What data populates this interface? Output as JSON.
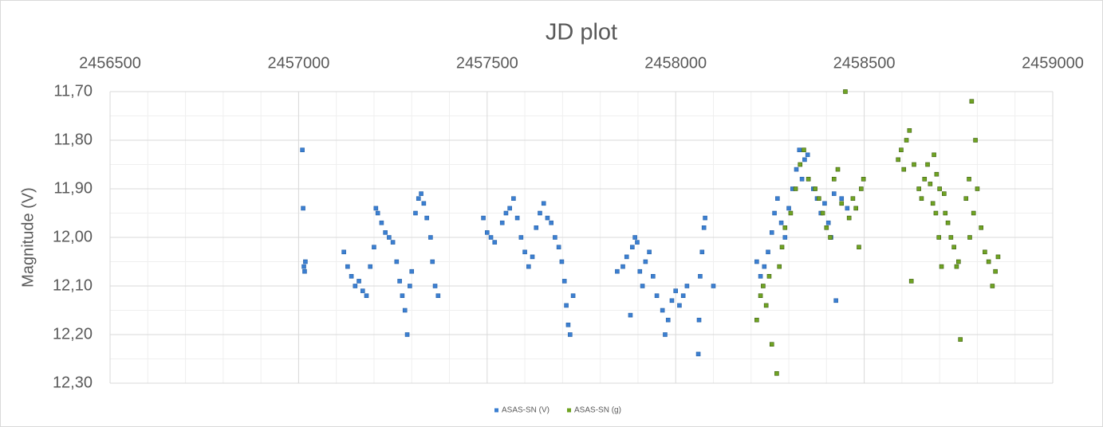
{
  "chart_data": {
    "type": "scatter",
    "title": "JD plot",
    "y_label": "Magnitude (V)",
    "xlim": [
      2456500,
      2459000
    ],
    "xticks": [
      2456500,
      2457000,
      2457500,
      2458000,
      2458500,
      2459000
    ],
    "x_axis_position": "top",
    "ylim": [
      11.7,
      12.3
    ],
    "y_inverted": true,
    "yticks": [
      {
        "value": 11.7,
        "label": "11,70"
      },
      {
        "value": 11.8,
        "label": "11,80"
      },
      {
        "value": 11.9,
        "label": "11,90"
      },
      {
        "value": 12.0,
        "label": "12,00"
      },
      {
        "value": 12.1,
        "label": "12,10"
      },
      {
        "value": 12.2,
        "label": "12,20"
      },
      {
        "value": 12.3,
        "label": "12,30"
      }
    ],
    "grid": true,
    "minor_grid": true,
    "legend": "bottom",
    "series": [
      {
        "name": "ASAS-SN (V)",
        "color": "#3b7fd1",
        "x": [
          2457010,
          2457012,
          2457014,
          2457016,
          2457018,
          2457120,
          2457130,
          2457140,
          2457150,
          2457160,
          2457170,
          2457180,
          2457190,
          2457200,
          2457205,
          2457210,
          2457220,
          2457230,
          2457240,
          2457250,
          2457260,
          2457268,
          2457275,
          2457282,
          2457288,
          2457295,
          2457300,
          2457310,
          2457318,
          2457325,
          2457332,
          2457340,
          2457350,
          2457355,
          2457362,
          2457370,
          2457490,
          2457500,
          2457510,
          2457520,
          2457540,
          2457550,
          2457560,
          2457570,
          2457580,
          2457590,
          2457600,
          2457610,
          2457620,
          2457630,
          2457640,
          2457650,
          2457660,
          2457670,
          2457680,
          2457690,
          2457698,
          2457705,
          2457710,
          2457715,
          2457720,
          2457728,
          2457845,
          2457860,
          2457870,
          2457880,
          2457885,
          2457892,
          2457898,
          2457905,
          2457912,
          2457920,
          2457930,
          2457940,
          2457950,
          2457965,
          2457972,
          2457980,
          2457990,
          2458000,
          2458010,
          2458020,
          2458030,
          2458060,
          2458062,
          2458065,
          2458070,
          2458075,
          2458078,
          2458100,
          2458215,
          2458225,
          2458235,
          2458245,
          2458255,
          2458262,
          2458270,
          2458280,
          2458290,
          2458300,
          2458310,
          2458320,
          2458328,
          2458335,
          2458342,
          2458350,
          2458365,
          2458375,
          2458385,
          2458395,
          2458405,
          2458412,
          2458420,
          2458425,
          2458440,
          2458455
        ],
        "values": [
          11.82,
          11.94,
          12.06,
          12.07,
          12.05,
          12.03,
          12.06,
          12.08,
          12.1,
          12.09,
          12.11,
          12.12,
          12.06,
          12.02,
          11.94,
          11.95,
          11.97,
          11.99,
          12.0,
          12.01,
          12.05,
          12.09,
          12.12,
          12.15,
          12.2,
          12.1,
          12.07,
          11.95,
          11.92,
          11.91,
          11.93,
          11.96,
          12.0,
          12.05,
          12.1,
          12.12,
          11.96,
          11.99,
          12.0,
          12.01,
          11.97,
          11.95,
          11.94,
          11.92,
          11.96,
          12.0,
          12.03,
          12.06,
          12.04,
          11.98,
          11.95,
          11.93,
          11.96,
          11.97,
          12.0,
          12.02,
          12.05,
          12.09,
          12.14,
          12.18,
          12.2,
          12.12,
          12.07,
          12.06,
          12.04,
          12.16,
          12.02,
          12.0,
          12.01,
          12.07,
          12.1,
          12.05,
          12.03,
          12.08,
          12.12,
          12.15,
          12.2,
          12.17,
          12.13,
          12.11,
          12.14,
          12.12,
          12.1,
          12.24,
          12.17,
          12.08,
          12.03,
          11.98,
          11.96,
          12.1,
          12.05,
          12.08,
          12.06,
          12.03,
          11.99,
          11.95,
          11.92,
          11.97,
          12.0,
          11.94,
          11.9,
          11.86,
          11.82,
          11.88,
          11.84,
          11.83,
          11.9,
          11.92,
          11.95,
          11.93,
          11.97,
          12.0,
          11.91,
          12.13,
          11.92,
          11.94
        ]
      },
      {
        "name": "ASAS-SN (g)",
        "color": "#6fa322",
        "x": [
          2458215,
          2458225,
          2458232,
          2458240,
          2458248,
          2458255,
          2458268,
          2458275,
          2458282,
          2458290,
          2458305,
          2458318,
          2458330,
          2458340,
          2458352,
          2458370,
          2458380,
          2458390,
          2458400,
          2458410,
          2458420,
          2458430,
          2458440,
          2458450,
          2458460,
          2458470,
          2458478,
          2458486,
          2458492,
          2458498,
          2458590,
          2458598,
          2458605,
          2458612,
          2458620,
          2458625,
          2458632,
          2458645,
          2458652,
          2458660,
          2458668,
          2458675,
          2458682,
          2458690,
          2458698,
          2458705,
          2458712,
          2458685,
          2458692,
          2458700,
          2458715,
          2458722,
          2458730,
          2458738,
          2458745,
          2458750,
          2458755,
          2458770,
          2458778,
          2458785,
          2458795,
          2458800,
          2458790,
          2458780,
          2458810,
          2458820,
          2458830,
          2458840,
          2458848,
          2458855
        ],
        "values": [
          12.17,
          12.12,
          12.1,
          12.14,
          12.08,
          12.22,
          12.28,
          12.06,
          12.02,
          11.98,
          11.95,
          11.9,
          11.85,
          11.82,
          11.88,
          11.9,
          11.92,
          11.95,
          11.98,
          12.0,
          11.88,
          11.86,
          11.93,
          11.7,
          11.96,
          11.92,
          11.94,
          12.02,
          11.9,
          11.88,
          11.84,
          11.82,
          11.86,
          11.8,
          11.78,
          12.09,
          11.85,
          11.9,
          11.92,
          11.88,
          11.85,
          11.89,
          11.93,
          11.95,
          12.0,
          12.06,
          11.91,
          11.83,
          11.87,
          11.9,
          11.95,
          11.97,
          12.0,
          12.02,
          12.06,
          12.05,
          12.21,
          11.92,
          11.88,
          11.72,
          11.8,
          11.9,
          11.95,
          12.0,
          11.98,
          12.03,
          12.05,
          12.1,
          12.07,
          12.04
        ]
      }
    ]
  }
}
